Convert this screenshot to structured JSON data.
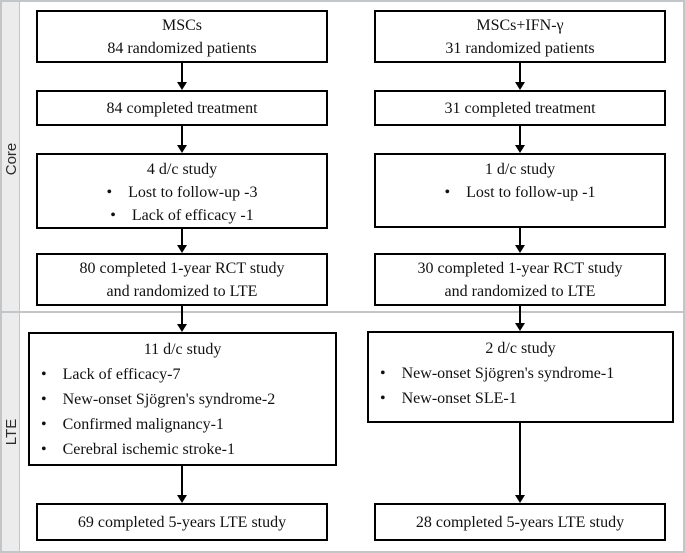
{
  "section_labels": {
    "core": "Core",
    "lte": "LTE"
  },
  "left": {
    "enrollment_line1": "MSCs",
    "enrollment_line2": "84 randomized patients",
    "completed_treatment": "84 completed treatment",
    "core_dc_title": "4 d/c study",
    "core_dc_items": [
      "Lost to follow-up -3",
      "Lack of efficacy -1"
    ],
    "completed_rct_line1": "80 completed 1-year RCT study",
    "completed_rct_line2": "and randomized to LTE",
    "lte_dc_title": "11 d/c study",
    "lte_dc_items": [
      "Lack of efficacy-7",
      "New-onset Sjögren's syndrome-2",
      "Confirmed malignancy-1",
      "Cerebral ischemic stroke-1"
    ],
    "completed_lte": "69 completed 5-years LTE study"
  },
  "right": {
    "enrollment_line1": "MSCs+IFN-γ",
    "enrollment_line2": "31 randomized patients",
    "completed_treatment": "31 completed treatment",
    "core_dc_title": "1 d/c study",
    "core_dc_items": [
      "Lost to follow-up -1"
    ],
    "completed_rct_line1": "30 completed 1-year RCT study",
    "completed_rct_line2": "and randomized to LTE",
    "lte_dc_title": "2 d/c study",
    "lte_dc_items": [
      "New-onset Sjögren's syndrome-1",
      "New-onset SLE-1"
    ],
    "completed_lte": "28 completed 5-years LTE study"
  },
  "colors": {
    "box_border": "#000000",
    "strip_bg": "#ececec",
    "frame_border": "#c3c6c8"
  }
}
